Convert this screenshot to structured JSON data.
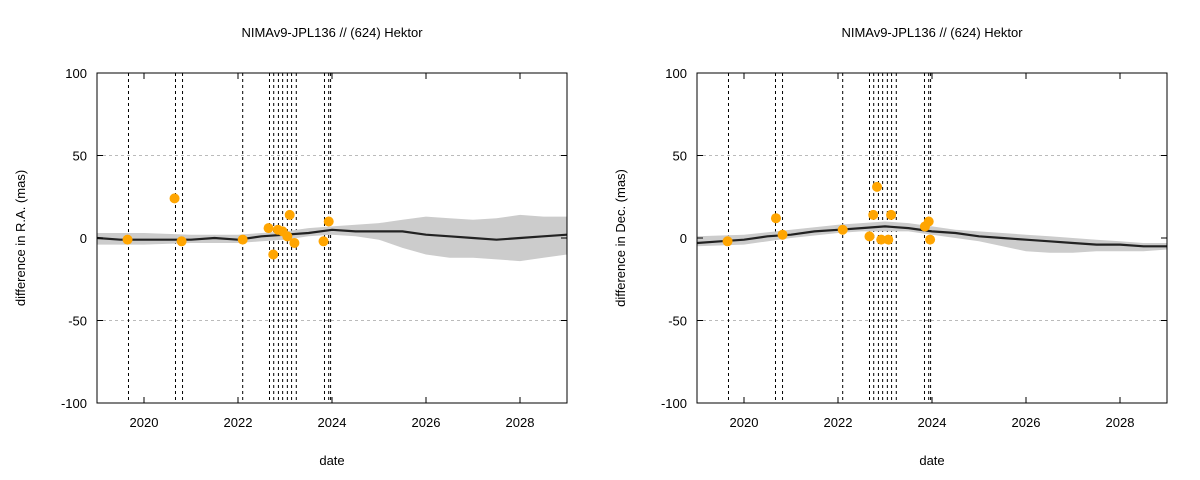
{
  "chart_data": [
    {
      "type": "line",
      "title": "NIMAv9-JPL136 // (624) Hektor",
      "xlabel": "date",
      "ylabel": "difference in R.A. (mas)",
      "xlim": [
        2019.0,
        2029.0
      ],
      "ylim": [
        -100,
        100
      ],
      "x_ticks": [
        2020,
        2022,
        2024,
        2026,
        2028
      ],
      "y_ticks": [
        -100,
        -50,
        0,
        50,
        100
      ],
      "y_grid_lines": [
        -50,
        50
      ],
      "vertical_dashed_lines": [
        2019.67,
        2020.67,
        2020.82,
        2022.1,
        2022.67,
        2022.76,
        2022.86,
        2022.95,
        2023.05,
        2023.14,
        2023.24,
        2023.84,
        2023.93,
        2023.97
      ],
      "series": [
        {
          "kind": "uncertainty-band",
          "x": [
            2019.0,
            2020.0,
            2021.0,
            2022.0,
            2022.5,
            2023.0,
            2023.5,
            2024.0,
            2024.5,
            2025.0,
            2025.5,
            2026.0,
            2026.5,
            2027.0,
            2027.5,
            2028.0,
            2028.5,
            2029.0
          ],
          "upper": [
            3,
            3,
            2,
            2,
            3,
            4,
            6,
            7,
            8,
            9,
            11,
            13,
            12,
            11,
            12,
            14,
            13,
            13
          ],
          "lower": [
            -4,
            -4,
            -3,
            -3,
            -2,
            -1,
            1,
            2,
            1,
            -1,
            -6,
            -10,
            -12,
            -12,
            -13,
            -14,
            -12,
            -10
          ]
        },
        {
          "kind": "line",
          "x": [
            2019.0,
            2019.5,
            2020.0,
            2020.5,
            2021.0,
            2021.5,
            2022.0,
            2022.5,
            2023.0,
            2023.5,
            2024.0,
            2024.5,
            2025.0,
            2025.5,
            2026.0,
            2026.5,
            2027.0,
            2027.5,
            2028.0,
            2028.5,
            2029.0
          ],
          "y": [
            0,
            -1,
            -1,
            -1,
            -1,
            0,
            -1,
            1,
            2,
            3,
            5,
            4,
            4,
            4,
            2,
            1,
            0,
            -1,
            0,
            1,
            2
          ]
        },
        {
          "kind": "points",
          "x": [
            2019.65,
            2020.65,
            2020.8,
            2022.1,
            2022.65,
            2022.75,
            2022.85,
            2022.95,
            2023.05,
            2023.1,
            2023.2,
            2023.82,
            2023.93
          ],
          "y": [
            -1,
            24,
            -2,
            -1,
            6,
            -10,
            5,
            4,
            1,
            14,
            -3,
            -2,
            10
          ]
        }
      ]
    },
    {
      "type": "line",
      "title": "NIMAv9-JPL136 // (624) Hektor",
      "xlabel": "date",
      "ylabel": "difference in Dec. (mas)",
      "xlim": [
        2019.0,
        2029.0
      ],
      "ylim": [
        -100,
        100
      ],
      "x_ticks": [
        2020,
        2022,
        2024,
        2026,
        2028
      ],
      "y_ticks": [
        -100,
        -50,
        0,
        50,
        100
      ],
      "y_grid_lines": [
        -50,
        50
      ],
      "vertical_dashed_lines": [
        2019.67,
        2020.67,
        2020.82,
        2022.1,
        2022.67,
        2022.76,
        2022.86,
        2022.95,
        2023.05,
        2023.14,
        2023.24,
        2023.84,
        2023.93,
        2023.97
      ],
      "series": [
        {
          "kind": "uncertainty-band",
          "x": [
            2019.0,
            2020.0,
            2021.0,
            2022.0,
            2022.5,
            2023.0,
            2023.5,
            2024.0,
            2024.5,
            2025.0,
            2025.5,
            2026.0,
            2026.5,
            2027.0,
            2027.5,
            2028.0,
            2028.5,
            2029.0
          ],
          "upper": [
            1,
            2,
            5,
            8,
            9,
            10,
            9,
            7,
            5,
            4,
            3,
            2,
            1,
            0,
            -1,
            -2,
            -3,
            -3
          ],
          "lower": [
            -5,
            -4,
            0,
            3,
            4,
            4,
            4,
            2,
            0,
            -2,
            -5,
            -8,
            -9,
            -9,
            -8,
            -8,
            -8,
            -7
          ]
        },
        {
          "kind": "line",
          "x": [
            2019.0,
            2019.5,
            2020.0,
            2020.5,
            2021.0,
            2021.5,
            2022.0,
            2022.5,
            2023.0,
            2023.5,
            2024.0,
            2024.5,
            2025.0,
            2025.5,
            2026.0,
            2026.5,
            2027.0,
            2027.5,
            2028.0,
            2028.5,
            2029.0
          ],
          "y": [
            -3,
            -2,
            -1,
            1,
            2,
            4,
            5,
            6,
            7,
            6,
            4,
            3,
            1,
            0,
            -1,
            -2,
            -3,
            -4,
            -4,
            -5,
            -5
          ]
        },
        {
          "kind": "points",
          "x": [
            2019.65,
            2020.68,
            2020.82,
            2022.1,
            2022.67,
            2022.75,
            2022.83,
            2022.92,
            2023.07,
            2023.13,
            2023.85,
            2023.93,
            2023.96
          ],
          "y": [
            -2,
            12,
            2,
            5,
            1,
            14,
            31,
            -1,
            -1,
            14,
            7,
            10,
            -1
          ]
        }
      ]
    }
  ]
}
